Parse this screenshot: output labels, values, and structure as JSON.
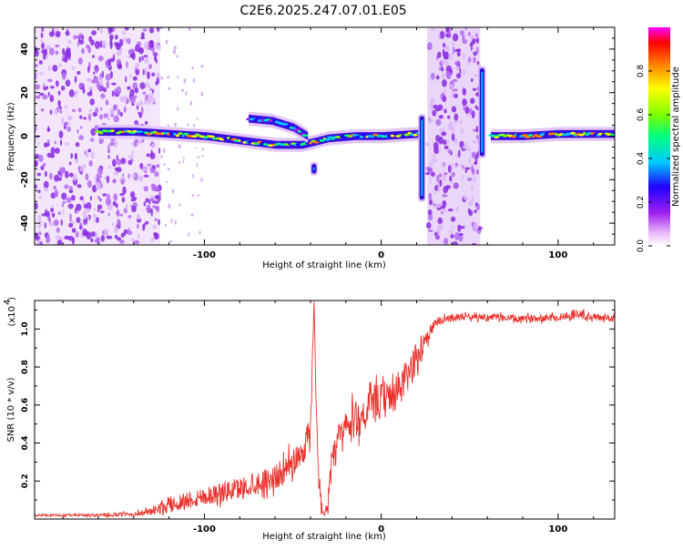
{
  "title": "C2E6.2025.247.07.01.E05",
  "chart_data": [
    {
      "type": "heatmap",
      "title": "C2E6.2025.247.07.01.E05",
      "xlabel": "Height of straight line (km)",
      "ylabel": "Frequency (Hz)",
      "xlim": [
        -196,
        132
      ],
      "ylim": [
        -50,
        50
      ],
      "xticks": [
        -100,
        0,
        100
      ],
      "xtick_labels": [
        "-100",
        "0",
        "100"
      ],
      "yticks": [
        -40,
        -20,
        0,
        20,
        40
      ],
      "ytick_labels": [
        "-40",
        "-20",
        "0",
        "20",
        "40"
      ],
      "colorbar": {
        "label": "Normalized spectral amplitude",
        "range": [
          0,
          1
        ],
        "ticks": [
          0.0,
          0.2,
          0.4,
          0.6,
          0.8
        ],
        "tick_labels": [
          "0.0",
          "0.2",
          "0.4",
          "0.6",
          "0.8"
        ],
        "colors": [
          "#ffffff",
          "#e8b8f8",
          "#a020f0",
          "#2000ff",
          "#00c8ff",
          "#00ff80",
          "#80ff00",
          "#ffff00",
          "#ff8000",
          "#ff0000",
          "#ff00ff"
        ]
      },
      "noise_regions": [
        {
          "x_range": [
            -196,
            -125
          ],
          "description_hidden": true
        },
        {
          "x_range": [
            26,
            56
          ]
        }
      ],
      "main_track": [
        {
          "x": -160,
          "y": 2
        },
        {
          "x": -140,
          "y": 2
        },
        {
          "x": -120,
          "y": 1
        },
        {
          "x": -100,
          "y": 0
        },
        {
          "x": -80,
          "y": -2
        },
        {
          "x": -60,
          "y": -4
        },
        {
          "x": -45,
          "y": -4
        },
        {
          "x": -30,
          "y": -1
        },
        {
          "x": -15,
          "y": 0
        },
        {
          "x": 0,
          "y": 0
        },
        {
          "x": 20,
          "y": 1
        },
        {
          "x": 62,
          "y": 0
        },
        {
          "x": 80,
          "y": 0
        },
        {
          "x": 100,
          "y": 1
        },
        {
          "x": 132,
          "y": 1
        }
      ],
      "branch_track": [
        {
          "x": -75,
          "y": 8
        },
        {
          "x": -62,
          "y": 7
        },
        {
          "x": -50,
          "y": 4
        },
        {
          "x": -42,
          "y": 0
        }
      ],
      "vertical_features": [
        {
          "x": 23,
          "y_range": [
            -30,
            10
          ]
        },
        {
          "x": 57,
          "y_range": [
            -10,
            32
          ]
        },
        {
          "x": -38,
          "y_range": [
            -18,
            -12
          ]
        }
      ]
    },
    {
      "type": "line",
      "ylabel": "SNR (10 * v/v)",
      "xlabel": "Height of straight line (km)",
      "y_multiplier": "(x10",
      "y_multiplier_exp": "4",
      "xlim": [
        -196,
        132
      ],
      "ylim": [
        0,
        1.15
      ],
      "xticks": [
        -100,
        0,
        100
      ],
      "xtick_labels": [
        "-100",
        "0",
        "100"
      ],
      "yticks": [
        0.2,
        0.4,
        0.6,
        0.8,
        1.0
      ],
      "ytick_labels": [
        "0.2",
        "0.4",
        "0.6",
        "0.8",
        "1.0"
      ],
      "color": "#e8302a",
      "series": [
        {
          "name": "SNR",
          "x": [
            -196,
            -180,
            -160,
            -140,
            -130,
            -120,
            -110,
            -100,
            -90,
            -80,
            -70,
            -60,
            -55,
            -50,
            -45,
            -40,
            -38,
            -36,
            -34,
            -32,
            -30,
            -28,
            -25,
            -20,
            -15,
            -10,
            -5,
            0,
            5,
            10,
            15,
            20,
            25,
            30,
            35,
            40,
            50,
            60,
            70,
            80,
            90,
            100,
            110,
            120,
            132
          ],
          "y": [
            0.02,
            0.02,
            0.02,
            0.025,
            0.04,
            0.07,
            0.1,
            0.12,
            0.14,
            0.16,
            0.19,
            0.22,
            0.25,
            0.3,
            0.35,
            0.45,
            1.15,
            0.3,
            0.08,
            0.02,
            0.1,
            0.25,
            0.4,
            0.48,
            0.52,
            0.55,
            0.6,
            0.62,
            0.64,
            0.68,
            0.75,
            0.85,
            0.95,
            1.02,
            1.05,
            1.06,
            1.07,
            1.06,
            1.06,
            1.05,
            1.06,
            1.06,
            1.08,
            1.06,
            1.06
          ],
          "noise": [
            0.005,
            0.006,
            0.008,
            0.012,
            0.02,
            0.04,
            0.05,
            0.05,
            0.055,
            0.06,
            0.06,
            0.07,
            0.07,
            0.08,
            0.08,
            0.1,
            0.0,
            0.1,
            0.04,
            0.0,
            0.06,
            0.1,
            0.1,
            0.1,
            0.1,
            0.1,
            0.1,
            0.1,
            0.1,
            0.1,
            0.1,
            0.08,
            0.05,
            0.03,
            0.02,
            0.02,
            0.02,
            0.02,
            0.02,
            0.02,
            0.02,
            0.02,
            0.03,
            0.02,
            0.02
          ]
        }
      ]
    }
  ]
}
